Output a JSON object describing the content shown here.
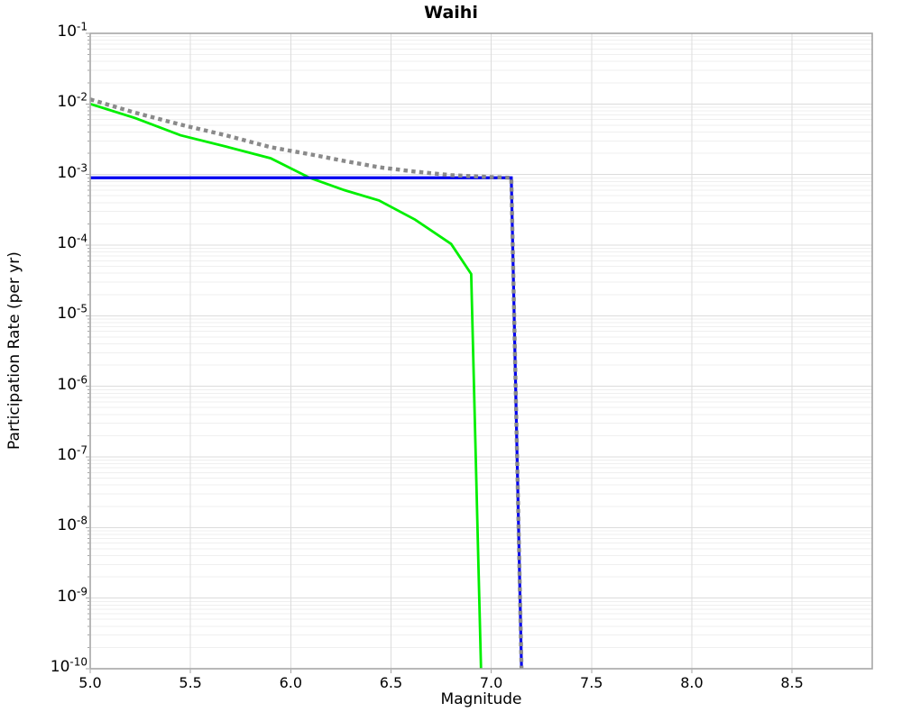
{
  "chart_data": {
    "type": "line",
    "title": "Waihi",
    "xlabel": "Magnitude",
    "ylabel": "Participation Rate (per yr)",
    "x_scale": "linear",
    "y_scale": "log",
    "x_range": [
      5.0,
      8.9
    ],
    "y_range": [
      1e-10,
      0.1
    ],
    "x_ticks": [
      5.0,
      5.5,
      6.0,
      6.5,
      7.0,
      7.5,
      8.0,
      8.5
    ],
    "x_tick_labels": [
      "5.0",
      "5.5",
      "6.0",
      "6.5",
      "7.0",
      "7.5",
      "8.0",
      "8.5"
    ],
    "y_tick_base": "10",
    "y_tick_exponents": [
      "-1",
      "-2",
      "-3",
      "-4",
      "-5",
      "-6",
      "-7",
      "-8",
      "-9",
      "-10"
    ],
    "grid": true,
    "legend": "none",
    "series": [
      {
        "name": "green-solid",
        "color": "#00ef00",
        "style": "solid",
        "width": 2.8,
        "points": [
          [
            5.0,
            0.01
          ],
          [
            5.225,
            0.0063
          ],
          [
            5.45,
            0.0036
          ],
          [
            5.675,
            0.0025
          ],
          [
            5.9,
            0.0017
          ],
          [
            6.094,
            0.0009
          ],
          [
            6.26,
            0.00061
          ],
          [
            6.44,
            0.00043
          ],
          [
            6.62,
            0.00023
          ],
          [
            6.8,
            0.000104
          ],
          [
            6.9,
            3.9e-05
          ],
          [
            6.949,
            1e-10
          ]
        ]
      },
      {
        "name": "blue-solid",
        "color": "#0000f0",
        "style": "solid",
        "width": 3.2,
        "points": [
          [
            5.0,
            0.0009
          ],
          [
            7.1,
            0.0009
          ],
          [
            7.151,
            1e-10
          ]
        ]
      },
      {
        "name": "gray-dotted",
        "color": "#8a8a8a",
        "style": "dotted",
        "width": 4.4,
        "points": [
          [
            5.0,
            0.0116
          ],
          [
            5.225,
            0.0075
          ],
          [
            5.45,
            0.0051
          ],
          [
            5.675,
            0.0036
          ],
          [
            5.9,
            0.00244
          ],
          [
            6.125,
            0.00187
          ],
          [
            6.26,
            0.00157
          ],
          [
            6.44,
            0.00127
          ],
          [
            6.62,
            0.0011
          ],
          [
            6.8,
            0.00098
          ],
          [
            7.0,
            0.00092
          ],
          [
            7.1,
            0.0009
          ],
          [
            7.151,
            1e-10
          ]
        ]
      }
    ]
  },
  "colors": {
    "background": "#ffffff",
    "frame": "#a6a6a6",
    "grid_major": "#dcdcdc",
    "grid_minor": "#efefef",
    "tick": "#a6a6a6",
    "text": "#000000"
  }
}
